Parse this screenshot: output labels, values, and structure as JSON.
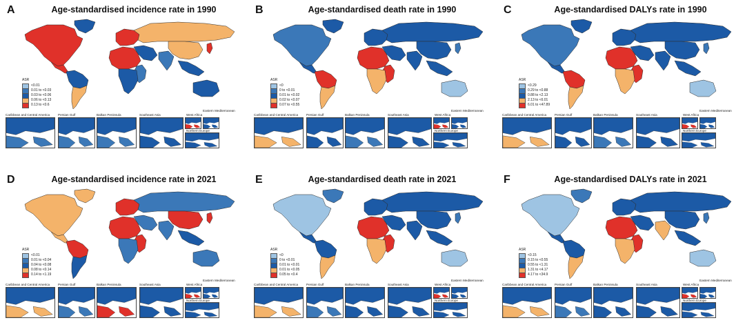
{
  "colors": {
    "c1": "#9ec4e3",
    "c2": "#3b78b8",
    "c3": "#1c5aa6",
    "c4": "#f4b36a",
    "c5": "#e0312a",
    "ocean": "#ffffff",
    "border": "#2b2b2b"
  },
  "inset_labels": {
    "caribbean": "Caribbean and Central America",
    "gulf": "Persian Gulf",
    "balkan": "Balkan Peninsula",
    "seasia": "Southeast Asia",
    "westafrica": "West Africa",
    "eastmed": "Eastern Mediterranean",
    "northeu": "Northern Europe"
  },
  "panels": [
    {
      "letter": "A",
      "title": "Age-standardised incidence rate in 1990",
      "legend_title": "ASR",
      "legend": [
        {
          "label": "<0.01",
          "color": "#9ec4e3"
        },
        {
          "label": "0.01 to <0.03",
          "color": "#3b78b8"
        },
        {
          "label": "0.03 to <0.06",
          "color": "#1c5aa6"
        },
        {
          "label": "0.06 to <0.13",
          "color": "#f4b36a"
        },
        {
          "label": "0.13 to <0.6",
          "color": "#e0312a"
        }
      ],
      "regions": {
        "na": "c5",
        "greenland": "c3",
        "ca": "c5",
        "sa_n": "c3",
        "sa_s": "c4",
        "eu": "c5",
        "russia": "c4",
        "mideast": "c3",
        "naf": "c5",
        "saf": "c3",
        "eaf": "c2",
        "india": "c2",
        "china": "c4",
        "seasia": "c3",
        "aus": "c3",
        "japan": "c5"
      }
    },
    {
      "letter": "B",
      "title": "Age-standardised death rate in 1990",
      "legend_title": "ASR",
      "legend": [
        {
          "label": "<0",
          "color": "#9ec4e3"
        },
        {
          "label": "0 to <0.01",
          "color": "#3b78b8"
        },
        {
          "label": "0.01 to <0.02",
          "color": "#1c5aa6"
        },
        {
          "label": "0.02 to <0.07",
          "color": "#f4b36a"
        },
        {
          "label": "0.07 to <0.55",
          "color": "#e0312a"
        }
      ],
      "regions": {
        "na": "c2",
        "greenland": "c3",
        "ca": "c3",
        "sa_n": "c5",
        "sa_s": "c4",
        "eu": "c3",
        "russia": "c3",
        "mideast": "c3",
        "naf": "c5",
        "saf": "c4",
        "eaf": "c5",
        "india": "c3",
        "china": "c3",
        "seasia": "c3",
        "aus": "c1",
        "japan": "c2"
      }
    },
    {
      "letter": "C",
      "title": "Age-standardised DALYs rate in 1990",
      "legend_title": "ASR",
      "legend": [
        {
          "label": "<0.29",
          "color": "#9ec4e3"
        },
        {
          "label": "0.29 to <0.88",
          "color": "#3b78b8"
        },
        {
          "label": "0.88 to <2.13",
          "color": "#1c5aa6"
        },
        {
          "label": "2.13 to <6.01",
          "color": "#f4b36a"
        },
        {
          "label": "6.01 to <47.89",
          "color": "#e0312a"
        }
      ],
      "regions": {
        "na": "c2",
        "greenland": "c3",
        "ca": "c3",
        "sa_n": "c5",
        "sa_s": "c4",
        "eu": "c3",
        "russia": "c3",
        "mideast": "c3",
        "naf": "c5",
        "saf": "c4",
        "eaf": "c5",
        "india": "c3",
        "china": "c3",
        "seasia": "c3",
        "aus": "c1",
        "japan": "c2"
      }
    },
    {
      "letter": "D",
      "title": "Age-standardised incidence rate in 2021",
      "legend_title": "ASR",
      "legend": [
        {
          "label": "<0.01",
          "color": "#9ec4e3"
        },
        {
          "label": "0.01 to <0.04",
          "color": "#3b78b8"
        },
        {
          "label": "0.04 to <0.08",
          "color": "#1c5aa6"
        },
        {
          "label": "0.08 to <0.14",
          "color": "#f4b36a"
        },
        {
          "label": "0.14 to <1.19",
          "color": "#e0312a"
        }
      ],
      "regions": {
        "na": "c4",
        "greenland": "c4",
        "ca": "c4",
        "sa_n": "c5",
        "sa_s": "c3",
        "eu": "c5",
        "russia": "c2",
        "mideast": "c2",
        "naf": "c5",
        "saf": "c2",
        "eaf": "c5",
        "india": "c2",
        "china": "c5",
        "seasia": "c3",
        "aus": "c2",
        "japan": "c5"
      }
    },
    {
      "letter": "E",
      "title": "Age-standardised death rate in 2021",
      "legend_title": "ASR",
      "legend": [
        {
          "label": "<0",
          "color": "#9ec4e3"
        },
        {
          "label": "0 to <0.01",
          "color": "#3b78b8"
        },
        {
          "label": "0.01 to <0.01",
          "color": "#1c5aa6"
        },
        {
          "label": "0.01 to <0.05",
          "color": "#f4b36a"
        },
        {
          "label": "0.05 to <0.4",
          "color": "#e0312a"
        }
      ],
      "regions": {
        "na": "c1",
        "greenland": "c2",
        "ca": "c3",
        "sa_n": "c3",
        "sa_s": "c4",
        "eu": "c3",
        "russia": "c3",
        "mideast": "c3",
        "naf": "c5",
        "saf": "c4",
        "eaf": "c5",
        "india": "c3",
        "china": "c3",
        "seasia": "c3",
        "aus": "c1",
        "japan": "c2"
      }
    },
    {
      "letter": "F",
      "title": "Age-standardised DALYs rate in 2021",
      "legend_title": "ASR",
      "legend": [
        {
          "label": "<0.15",
          "color": "#9ec4e3"
        },
        {
          "label": "0.15 to <0.55",
          "color": "#3b78b8"
        },
        {
          "label": "0.55 to <1.31",
          "color": "#1c5aa6"
        },
        {
          "label": "1.31 to <4.17",
          "color": "#f4b36a"
        },
        {
          "label": "4.17 to <34.9",
          "color": "#e0312a"
        }
      ],
      "regions": {
        "na": "c1",
        "greenland": "c2",
        "ca": "c3",
        "sa_n": "c3",
        "sa_s": "c4",
        "eu": "c3",
        "russia": "c3",
        "mideast": "c3",
        "naf": "c5",
        "saf": "c4",
        "eaf": "c5",
        "india": "c4",
        "china": "c3",
        "seasia": "c3",
        "aus": "c1",
        "japan": "c2"
      }
    }
  ]
}
